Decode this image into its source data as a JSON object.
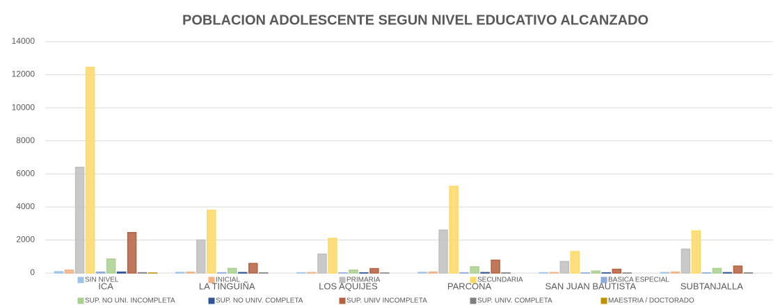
{
  "chart_data": {
    "type": "bar",
    "title": "POBLACION ADOLESCENTE  SEGUN NIVEL EDUCATIVO ALCANZADO",
    "categories": [
      "ICA",
      "LA TINGUIÑA",
      "LOS AQUIJES",
      "PARCONA",
      "SAN JUAN BAUTISTA",
      "SUBTANJALLA"
    ],
    "series": [
      {
        "name": "SIN NIVEL",
        "color": "#9dc3e6",
        "values": [
          80,
          40,
          20,
          40,
          20,
          30
        ]
      },
      {
        "name": "INICIAL",
        "color": "#f4b183",
        "values": [
          180,
          50,
          30,
          60,
          30,
          60
        ]
      },
      {
        "name": "PRIMARIA",
        "color": "#bfbfbf",
        "values": [
          6400,
          2000,
          1150,
          2600,
          700,
          1450
        ]
      },
      {
        "name": "SECUNDARIA",
        "color": "#ffd966",
        "values": [
          12450,
          3800,
          2100,
          5250,
          1300,
          2550
        ]
      },
      {
        "name": "BASICA ESPECIAL",
        "color": "#8faadc",
        "values": [
          60,
          20,
          10,
          20,
          10,
          15
        ]
      },
      {
        "name": "SUP. NO UNI. INCOMPLETA",
        "color": "#a9d18e",
        "values": [
          850,
          280,
          180,
          380,
          120,
          280
        ]
      },
      {
        "name": "SUP. NO UNIV. COMPLETA",
        "color": "#2f5597",
        "values": [
          60,
          30,
          15,
          30,
          15,
          25
        ]
      },
      {
        "name": "SUP. UNIV INCOMPLETA",
        "color": "#b5603f",
        "values": [
          2450,
          580,
          270,
          780,
          230,
          420
        ]
      },
      {
        "name": "SUP. UNIV. COMPLETA",
        "color": "#7f7f7f",
        "values": [
          20,
          10,
          5,
          10,
          5,
          10
        ]
      },
      {
        "name": "MAESTRIA / DOCTORADO",
        "color": "#bf9000",
        "values": [
          5,
          0,
          0,
          0,
          0,
          0
        ]
      }
    ],
    "ylim": [
      0,
      14000
    ],
    "yticks": [
      0,
      2000,
      4000,
      6000,
      8000,
      10000,
      12000,
      14000
    ],
    "grid": true
  }
}
